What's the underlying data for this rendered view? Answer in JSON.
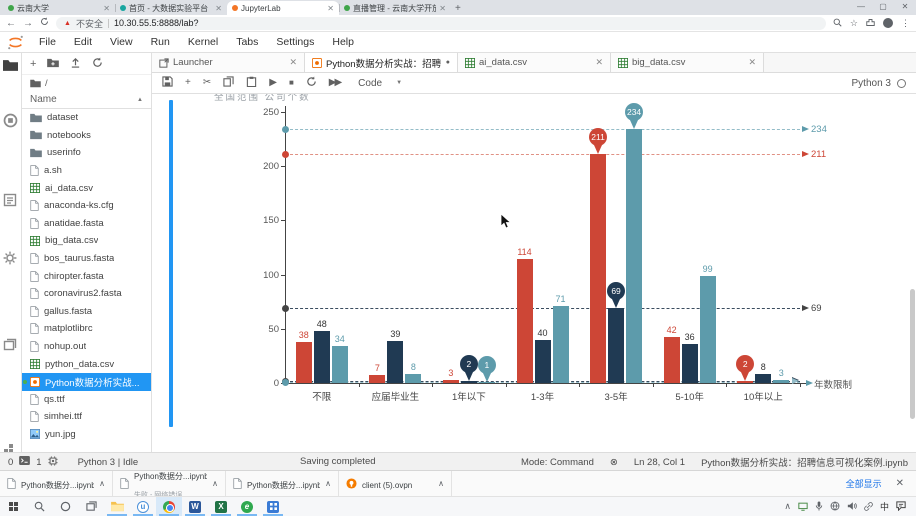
{
  "browser": {
    "tabs": [
      {
        "label": "云南大学",
        "favicon_color": "#3fa54a",
        "active": false
      },
      {
        "label": "首页 - 大数据实验平台",
        "favicon_color": "#18a5a0",
        "active": false
      },
      {
        "label": "JupyterLab",
        "favicon_color": "#f37626",
        "active": true
      },
      {
        "label": "直播管理 - 云南大学开放平台数…",
        "favicon_color": "#3fa54a",
        "active": false
      }
    ],
    "new_tab_label": "+",
    "window_controls": {
      "min": "—",
      "max": "▢",
      "close": "✕"
    },
    "nav": {
      "back": "←",
      "forward": "→"
    },
    "address": {
      "security": "不安全",
      "url": "10.30.55.5:8888/lab?"
    }
  },
  "menubar": {
    "items": [
      "File",
      "Edit",
      "View",
      "Run",
      "Kernel",
      "Tabs",
      "Settings",
      "Help"
    ]
  },
  "filebrowser": {
    "breadcrumb": "/",
    "column_header": "Name",
    "sort_caret": "▲",
    "files": [
      {
        "name": "dataset",
        "type": "folder"
      },
      {
        "name": "notebooks",
        "type": "folder"
      },
      {
        "name": "userinfo",
        "type": "folder"
      },
      {
        "name": "a.sh",
        "type": "file"
      },
      {
        "name": "ai_data.csv",
        "type": "csv"
      },
      {
        "name": "anaconda-ks.cfg",
        "type": "file"
      },
      {
        "name": "anatidae.fasta",
        "type": "file"
      },
      {
        "name": "big_data.csv",
        "type": "csv"
      },
      {
        "name": "bos_taurus.fasta",
        "type": "file"
      },
      {
        "name": "chiropter.fasta",
        "type": "file"
      },
      {
        "name": "coronavirus2.fasta",
        "type": "file"
      },
      {
        "name": "gallus.fasta",
        "type": "file"
      },
      {
        "name": "matplotlibrc",
        "type": "file"
      },
      {
        "name": "nohup.out",
        "type": "file"
      },
      {
        "name": "python_data.csv",
        "type": "csv"
      },
      {
        "name": "Python数据分析实战...",
        "type": "notebook",
        "selected": true
      },
      {
        "name": "qs.ttf",
        "type": "file"
      },
      {
        "name": "simhei.ttf",
        "type": "file"
      },
      {
        "name": "yun.jpg",
        "type": "image"
      }
    ]
  },
  "docktabs": [
    {
      "label": "Launcher",
      "type": "launcher",
      "active": false,
      "dirty": false
    },
    {
      "label": "Python数据分析实战：招聘",
      "type": "notebook",
      "active": true,
      "dirty": true
    },
    {
      "label": "ai_data.csv",
      "type": "csv",
      "active": false,
      "dirty": false
    },
    {
      "label": "big_data.csv",
      "type": "csv",
      "active": false,
      "dirty": false
    }
  ],
  "toolbar": {
    "mode_label": "Code",
    "kernel_label": "Python 3"
  },
  "chart_data": {
    "type": "bar",
    "title_clipped": "全国范围  公司个数",
    "categories": [
      "不限",
      "应届毕业生",
      "1年以下",
      "1-3年",
      "3-5年",
      "5-10年",
      "10年以上"
    ],
    "series": [
      {
        "name": "series-red",
        "color": "#cd4636",
        "values": [
          38,
          7,
          3,
          114,
          211,
          42,
          2
        ]
      },
      {
        "name": "series-navy",
        "color": "#203a53",
        "values": [
          48,
          39,
          2,
          40,
          69,
          36,
          8
        ]
      },
      {
        "name": "series-teal",
        "color": "#5d9bab",
        "values": [
          34,
          8,
          1,
          71,
          234,
          99,
          3
        ]
      }
    ],
    "yticks": [
      0,
      50,
      100,
      150,
      200,
      250
    ],
    "ylim": [
      0,
      250
    ],
    "xlabel": "年数限制",
    "grid": false,
    "legend_position": "clipped-top",
    "marklines": [
      {
        "value": 234,
        "line": "#93bcc8",
        "label": "#5d9bab",
        "hide_label": false
      },
      {
        "value": 211,
        "line": "#e09184",
        "label": "#cd4636",
        "hide_label": false
      },
      {
        "value": 69,
        "line": "#3a4c5e",
        "label": "#444444",
        "hide_label": false
      },
      {
        "value": 2,
        "line": "#3a4c5e",
        "label": "#444444",
        "hide_label": true
      },
      {
        "value": 1,
        "line": "#93bcc8",
        "label": "#5d9bab",
        "hide_label": true
      }
    ],
    "markpoints": [
      {
        "series": 0,
        "category_index": 4,
        "value": 211
      },
      {
        "series": 0,
        "category_index": 6,
        "value": 2
      },
      {
        "series": 1,
        "category_index": 4,
        "value": 69
      },
      {
        "series": 1,
        "category_index": 2,
        "value": 2
      },
      {
        "series": 2,
        "category_index": 4,
        "value": 234
      },
      {
        "series": 2,
        "category_index": 2,
        "value": 1
      }
    ]
  },
  "statusbar": {
    "terminals": "0",
    "kernels": "1",
    "kernel_status": "Python 3 | Idle",
    "message": "Saving completed",
    "mode": "Mode: Command",
    "interrupt_icon": "⊗",
    "position": "Ln 28, Col 1",
    "filename": "Python数据分析实战：招聘信息可视化案例.ipynb"
  },
  "downloads": {
    "items": [
      {
        "label": "Python数据分...ipynb",
        "sub": "",
        "type": "ipynb"
      },
      {
        "label": "Python数据分...ipynb",
        "sub": "失败 - 网络错误",
        "type": "ipynb"
      },
      {
        "label": "Python数据分...ipynb",
        "sub": "",
        "type": "ipynb"
      },
      {
        "label": "client (5).ovpn",
        "sub": "",
        "type": "ovpn"
      }
    ],
    "show_all": "全部显示",
    "close": "✕",
    "chevron": "∧"
  },
  "taskbar": {
    "ime": "中",
    "tray_expand": "∧",
    "word_letter": "W",
    "excel_letter": "X",
    "green_letter": "e",
    "u_letter": "u"
  }
}
